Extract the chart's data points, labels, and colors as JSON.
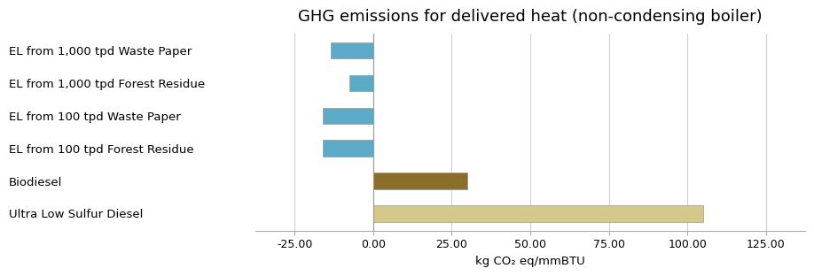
{
  "title": "GHG emissions for delivered heat (non-condensing boiler)",
  "categories": [
    "EL from 1,000 tpd Waste Paper",
    "EL from 1,000 tpd Forest Residue",
    "EL from 100 tpd Waste Paper",
    "EL from 100 tpd Forest Residue",
    "Biodiesel",
    "Ultra Low Sulfur Diesel"
  ],
  "values": [
    -13.5,
    -7.5,
    -16.0,
    -16.0,
    30.0,
    105.0
  ],
  "colors": [
    "#5baac8",
    "#5baac8",
    "#5baac8",
    "#5baac8",
    "#8b6e2a",
    "#d4c98a"
  ],
  "xlabel": "kg CO₂ eq/mmBTU",
  "xlim": [
    -37.5,
    137.5
  ],
  "xticks": [
    -25,
    0,
    25,
    50,
    75,
    100,
    125
  ],
  "title_fontsize": 13,
  "label_fontsize": 9.5,
  "tick_fontsize": 9,
  "xlabel_fontsize": 9.5,
  "background_color": "#ffffff",
  "grid_color": "#d0d0d0",
  "text_color": "#000000",
  "bar_height": 0.5
}
